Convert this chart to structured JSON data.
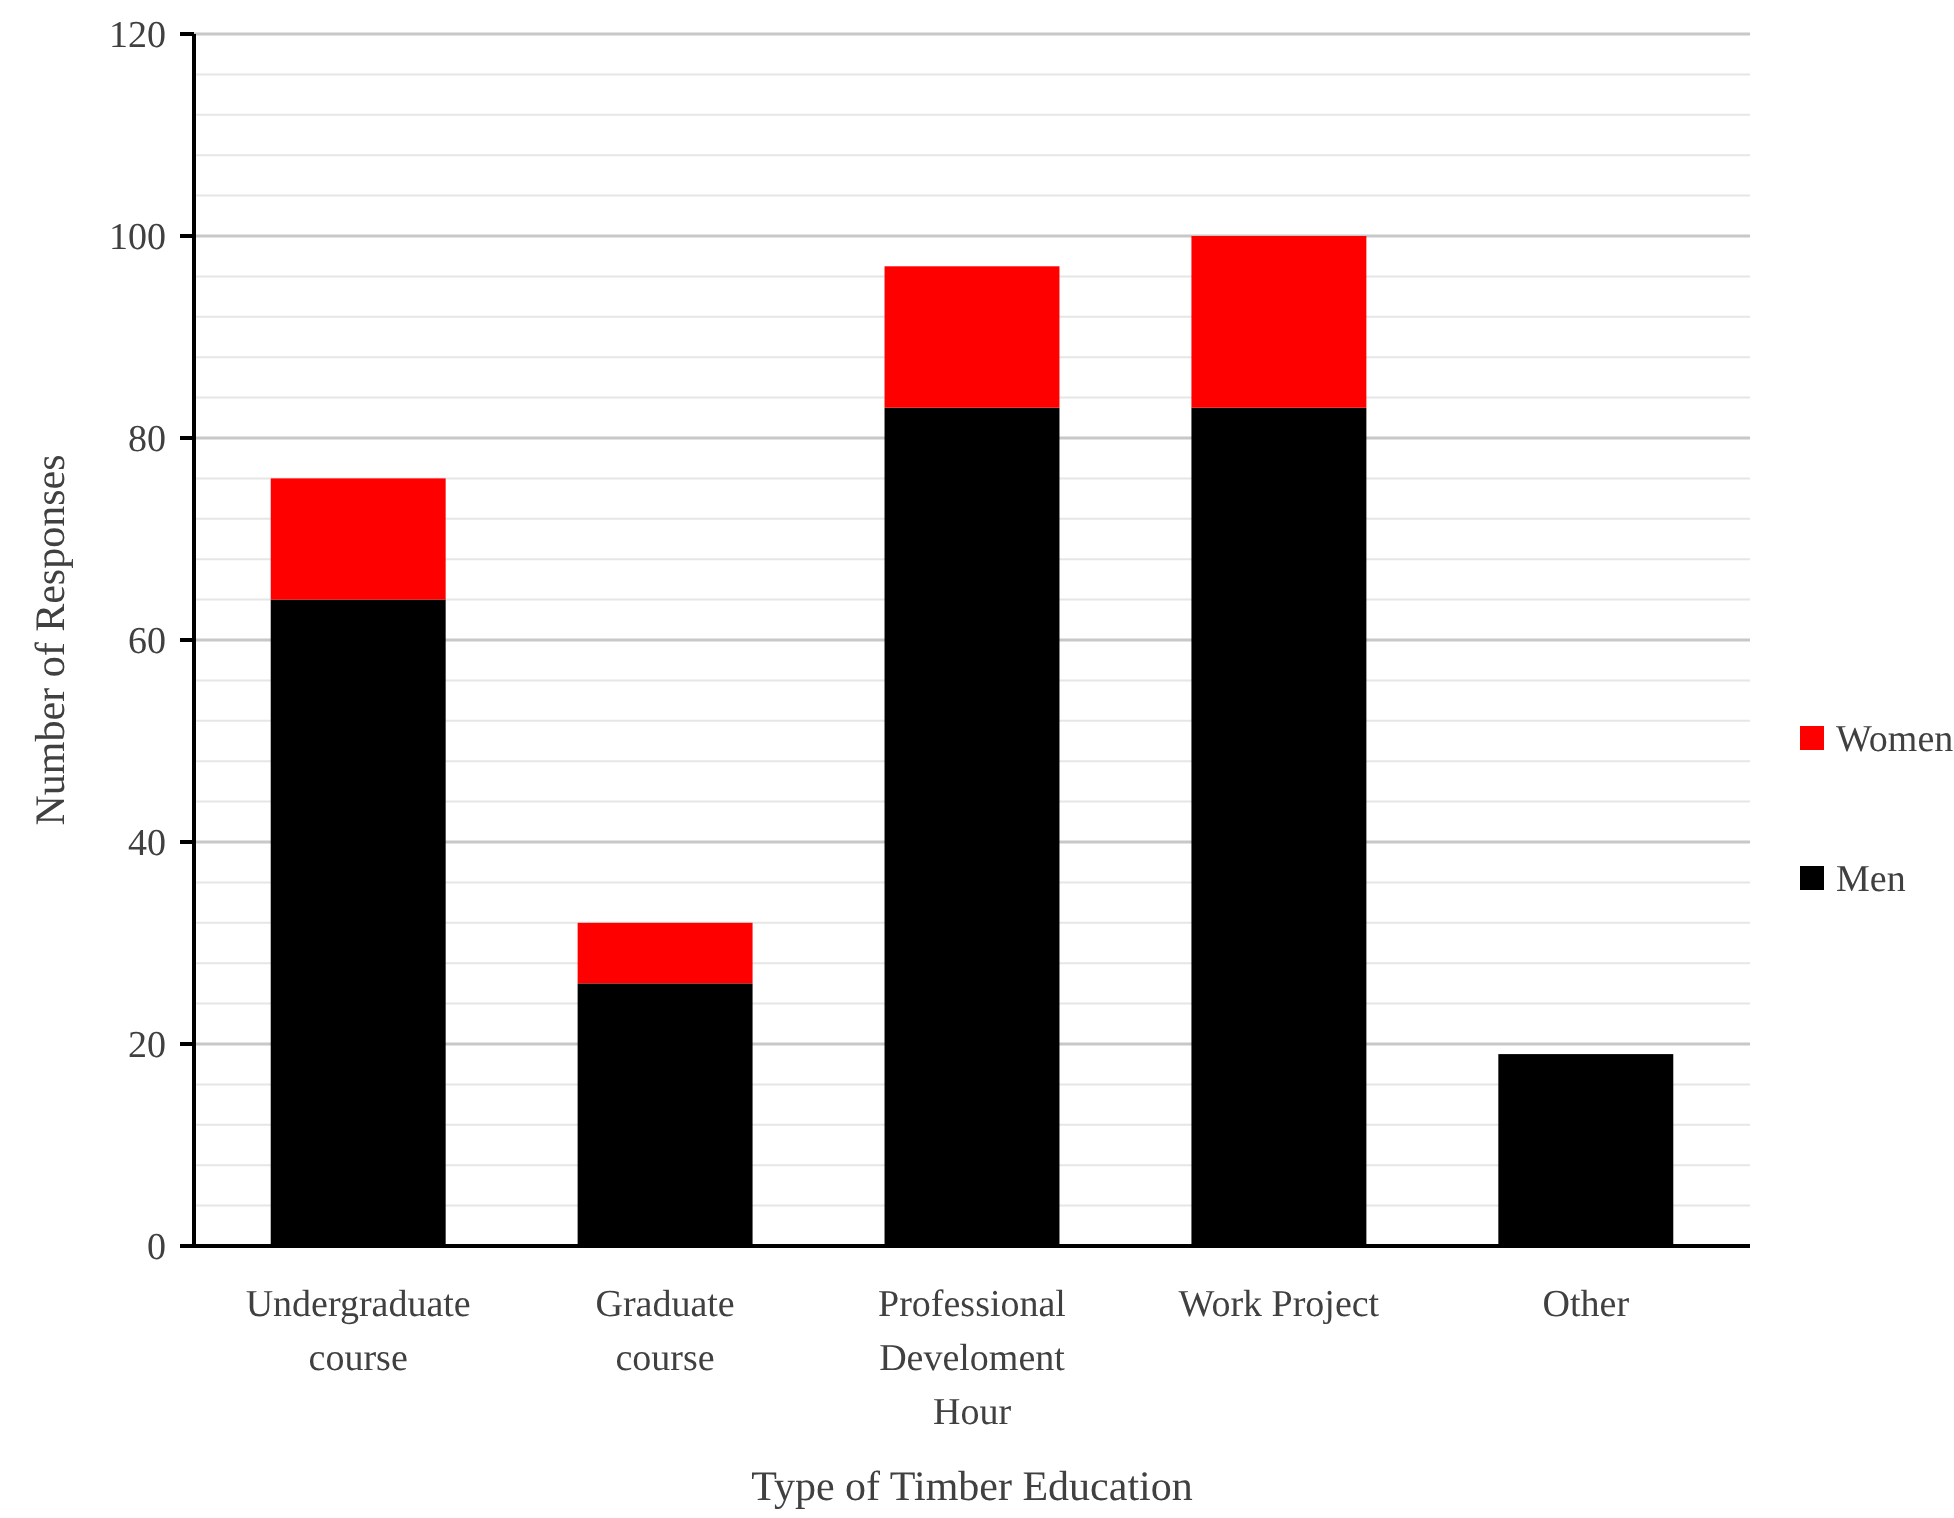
{
  "chart_data": {
    "type": "bar",
    "stacked": true,
    "xlabel": "Type of Timber Education",
    "ylabel": "Number of Responses",
    "categories": [
      "Undergraduate course",
      "Graduate course",
      "Professional Develoment Hour",
      "Work Project",
      "Other"
    ],
    "series": [
      {
        "name": "Men",
        "color": "#000000",
        "values": [
          64,
          26,
          83,
          83,
          19
        ]
      },
      {
        "name": "Women",
        "color": "#ff0000",
        "values": [
          12,
          6,
          14,
          17,
          0
        ]
      }
    ],
    "ylim": [
      0,
      120
    ],
    "yticks": [
      0,
      {
        "value": 4,
        "label": null
      },
      {
        "value": 8,
        "label": null
      },
      {
        "value": 12,
        "label": null
      },
      {
        "value": 16,
        "label": null
      },
      20,
      {
        "value": 24,
        "label": null
      },
      {
        "value": 28,
        "label": null
      },
      {
        "value": 32,
        "label": null
      },
      {
        "value": 36,
        "label": null
      },
      40,
      {
        "value": 44,
        "label": null
      },
      {
        "value": 48,
        "label": null
      },
      {
        "value": 52,
        "label": null
      },
      {
        "value": 56,
        "label": null
      },
      60,
      {
        "value": 64,
        "label": null
      },
      {
        "value": 68,
        "label": null
      },
      {
        "value": 72,
        "label": null
      },
      {
        "value": 76,
        "label": null
      },
      80,
      {
        "value": 84,
        "label": null
      },
      {
        "value": 88,
        "label": null
      },
      {
        "value": 92,
        "label": null
      },
      {
        "value": 96,
        "label": null
      },
      100,
      {
        "value": 104,
        "label": null
      },
      {
        "value": 108,
        "label": null
      },
      {
        "value": 112,
        "label": null
      },
      {
        "value": 116,
        "label": null
      },
      120
    ],
    "grid": "y",
    "legend": "right"
  }
}
